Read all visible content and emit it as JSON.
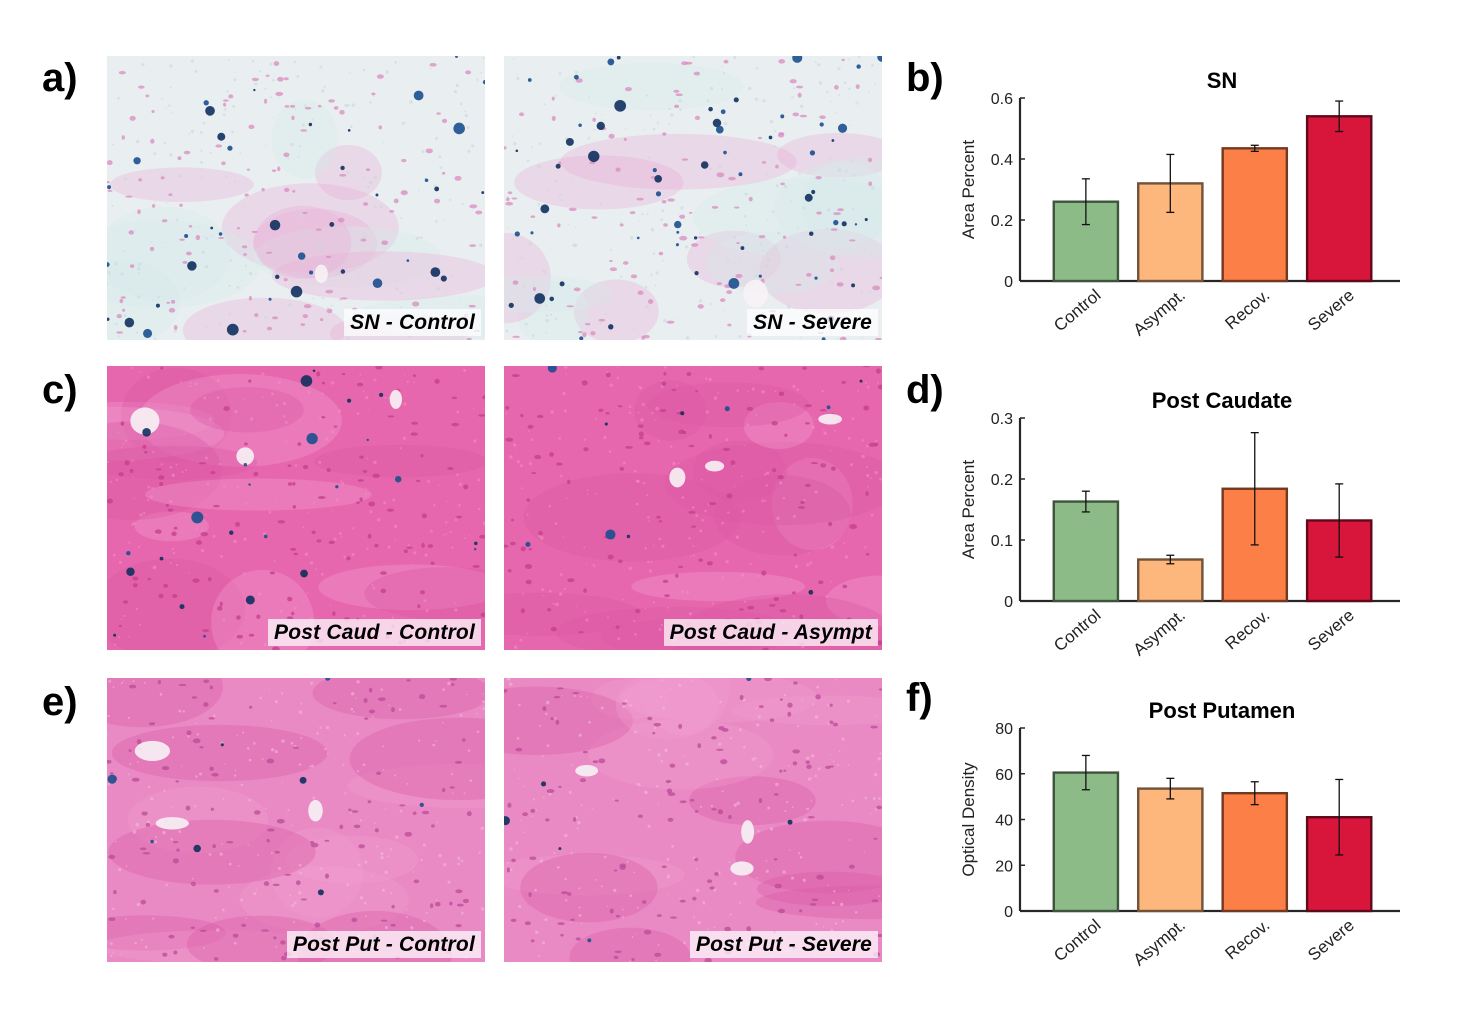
{
  "panel_labels": [
    "a)",
    "b)",
    "c)",
    "d)",
    "e)",
    "f)"
  ],
  "micrographs": [
    {
      "caption": "SN - Control",
      "stain": "sn",
      "blue_density": 1.0
    },
    {
      "caption": "SN - Severe",
      "stain": "sn",
      "blue_density": 1.5
    },
    {
      "caption": "Post Caud - Control",
      "stain": "pink",
      "blue_density": 0.6
    },
    {
      "caption": "Post Caud - Asympt",
      "stain": "pink",
      "blue_density": 0.25
    },
    {
      "caption": "Post Put - Control",
      "stain": "pink-light",
      "blue_density": 0.2
    },
    {
      "caption": "Post Put - Severe",
      "stain": "pink-light",
      "blue_density": 0.15
    }
  ],
  "colors": {
    "Control": "#8cbb88",
    "Asympt.": "#fdb77c",
    "Recov.": "#fd7f48",
    "Severe": "#d8153b"
  },
  "chart_data": [
    {
      "type": "bar",
      "title": "SN",
      "ylabel": "Area Percent",
      "categories": [
        "Control",
        "Asympt.",
        "Recov.",
        "Severe"
      ],
      "values": [
        0.26,
        0.32,
        0.435,
        0.54
      ],
      "errors": [
        0.075,
        0.095,
        0.01,
        0.05
      ],
      "ylim": [
        0,
        0.6
      ],
      "yticks": [
        "0",
        "0.2",
        "0.4",
        "0.6"
      ],
      "ytick_values": [
        0,
        0.2,
        0.4,
        0.6
      ]
    },
    {
      "type": "bar",
      "title": "Post Caudate",
      "ylabel": "Area Percent",
      "categories": [
        "Control",
        "Asympt.",
        "Recov.",
        "Severe"
      ],
      "values": [
        0.163,
        0.068,
        0.184,
        0.132
      ],
      "errors": [
        0.017,
        0.007,
        0.092,
        0.06
      ],
      "ylim": [
        0,
        0.3
      ],
      "yticks": [
        "0",
        "0.1",
        "0.2",
        "0.3"
      ],
      "ytick_values": [
        0,
        0.1,
        0.2,
        0.3
      ]
    },
    {
      "type": "bar",
      "title": "Post Putamen",
      "ylabel": "Optical Density",
      "categories": [
        "Control",
        "Asympt.",
        "Recov.",
        "Severe"
      ],
      "values": [
        60.5,
        53.5,
        51.5,
        41
      ],
      "errors": [
        7.5,
        4.5,
        5,
        16.5
      ],
      "ylim": [
        0,
        80
      ],
      "yticks": [
        "0",
        "20",
        "40",
        "60",
        "80"
      ],
      "ytick_values": [
        0,
        20,
        40,
        60,
        80
      ]
    }
  ]
}
